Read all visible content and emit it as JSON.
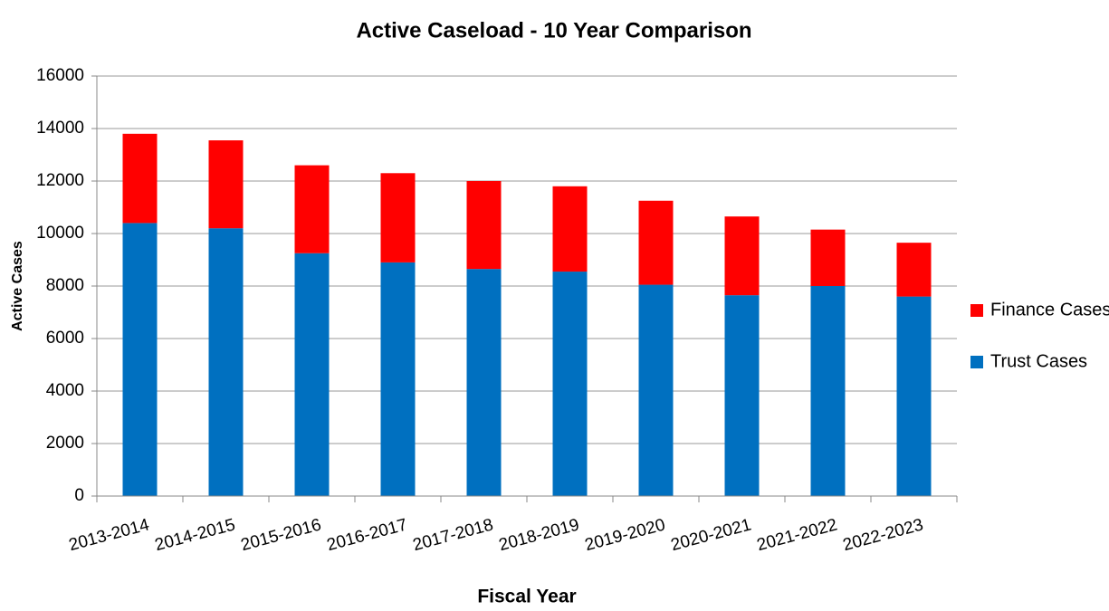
{
  "chart_data": {
    "type": "stacked_bar",
    "title": "Active Caseload - 10 Year Comparison",
    "x_label": "Fiscal Year",
    "y_label": "Active Cases",
    "categories": [
      "2013-2014",
      "2014-2015",
      "2015-2016",
      "2016-2017",
      "2017-2018",
      "2018-2019",
      "2019-2020",
      "2020-2021",
      "2021-2022",
      "2022-2023"
    ],
    "series": [
      {
        "name": "Trust Cases",
        "color": "#0070c0",
        "values": [
          10400,
          10200,
          9250,
          8900,
          8650,
          8550,
          8050,
          7650,
          8000,
          7600
        ]
      },
      {
        "name": "Finance Cases",
        "color": "#ff0000",
        "values": [
          3400,
          3350,
          3350,
          3400,
          3350,
          3250,
          3200,
          3000,
          2150,
          2050
        ]
      }
    ],
    "ylim": [
      0,
      16000
    ],
    "yticks": [
      0,
      2000,
      4000,
      6000,
      8000,
      10000,
      12000,
      14000,
      16000
    ],
    "grid": true,
    "legend": "right"
  }
}
